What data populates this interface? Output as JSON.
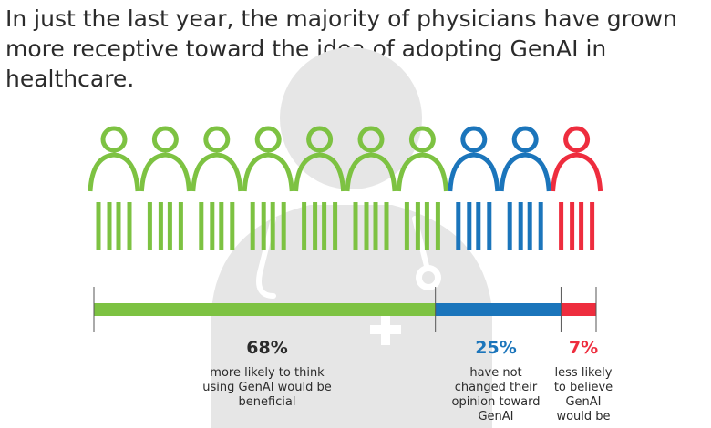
{
  "headline": "In just the last year, the majority of physicians have grown more receptive toward the idea of adopting GenAI in healthcare.",
  "chart_data": {
    "type": "bar",
    "orientation": "horizontal-stacked",
    "title": "In just the last year, the majority of physicians have grown more receptive toward the idea of adopting GenAI in healthcare.",
    "unit": "%",
    "categories": [
      "More likely to think GenAI would be beneficial",
      "Have not changed their opinion",
      "Less likely to believe GenAI would be beneficial"
    ],
    "series": [
      {
        "name": "more likely",
        "value": 68,
        "color": "#7dc242",
        "icon_count": 7
      },
      {
        "name": "no change",
        "value": 25,
        "color": "#1b75bb",
        "icon_count": 2
      },
      {
        "name": "less likely",
        "value": 7,
        "color": "#ee2d3e",
        "icon_count": 1
      }
    ]
  },
  "segments": [
    {
      "percent_label": "68%",
      "description": [
        "more likely to think",
        "using GenAI would be",
        "beneficial"
      ],
      "color": "#7dc242"
    },
    {
      "percent_label": "25%",
      "description": [
        "have not",
        "changed their",
        "opinion toward",
        "GenAI"
      ],
      "color": "#1b75bb"
    },
    {
      "percent_label": "7%",
      "description": [
        "less likely",
        "to believe",
        "GenAI",
        "would be"
      ],
      "color": "#ee2d3e"
    }
  ],
  "background_icon": "doctor-silhouette-icon"
}
